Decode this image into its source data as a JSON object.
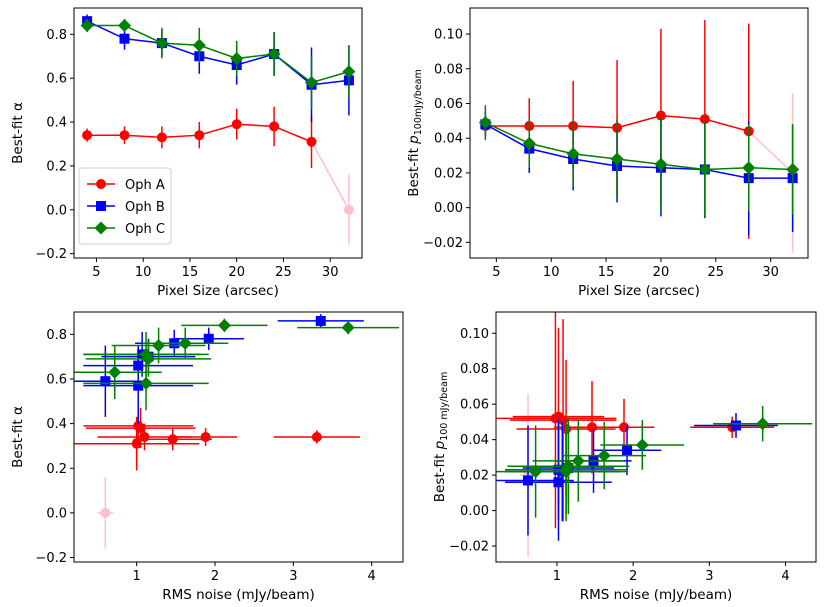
{
  "colors": {
    "Oph A": "#ff0000",
    "Oph B": "#0000ff",
    "Oph C": "#008000",
    "excluded": "#ffc0cb"
  },
  "legend": [
    "Oph A",
    "Oph B",
    "Oph C"
  ],
  "chart_data": [
    {
      "type": "scatter",
      "xlabel": "Pixel Size (arcsec)",
      "ylabel": "Best-fit α",
      "xlim": [
        2.6,
        33.4
      ],
      "ylim": [
        -0.22,
        0.92
      ],
      "xticks": [
        5,
        10,
        15,
        20,
        25,
        30
      ],
      "yticks": [
        -0.2,
        0.0,
        0.2,
        0.4,
        0.6,
        0.8
      ],
      "ytick_labels": [
        "−0.2",
        "0.0",
        "0.2",
        "0.4",
        "0.6",
        "0.8"
      ],
      "legend_position": "lower-left",
      "series": [
        {
          "name": "Oph A",
          "marker": "circle",
          "x": [
            4,
            8,
            12,
            16,
            20,
            24,
            28
          ],
          "y": [
            0.34,
            0.34,
            0.33,
            0.34,
            0.39,
            0.38,
            0.31
          ],
          "yerr": [
            0.03,
            0.04,
            0.05,
            0.06,
            0.07,
            0.09,
            0.12
          ]
        },
        {
          "name": "Oph B",
          "marker": "square",
          "x": [
            4,
            8,
            12,
            16,
            20,
            24,
            28,
            32
          ],
          "y": [
            0.86,
            0.78,
            0.76,
            0.7,
            0.66,
            0.71,
            0.57,
            0.59
          ],
          "yerr": [
            0.03,
            0.05,
            0.06,
            0.08,
            0.09,
            0.1,
            0.17,
            0.16
          ]
        },
        {
          "name": "Oph C",
          "marker": "diamond",
          "x": [
            4,
            8,
            12,
            16,
            20,
            24,
            28,
            32
          ],
          "y": [
            0.84,
            0.84,
            0.76,
            0.75,
            0.69,
            0.71,
            0.58,
            0.63
          ],
          "yerr": [
            0.03,
            0.03,
            0.07,
            0.08,
            0.08,
            0.1,
            0.12,
            0.12
          ]
        }
      ],
      "excluded": {
        "x": [
          28,
          32
        ],
        "y": [
          0.31,
          0.0
        ],
        "point_yerr": 0.16
      }
    },
    {
      "type": "scatter",
      "xlabel": "Pixel Size (arcsec)",
      "ylabel_main": "Best-fit ",
      "ylabel_symbol": "p",
      "ylabel_sub": "100mJy/beam",
      "xlim": [
        2.6,
        33.4
      ],
      "ylim": [
        -0.029,
        0.115
      ],
      "xticks": [
        5,
        10,
        15,
        20,
        25,
        30
      ],
      "yticks": [
        -0.02,
        0.0,
        0.02,
        0.04,
        0.06,
        0.08,
        0.1
      ],
      "ytick_labels": [
        "−0.02",
        "0.00",
        "0.02",
        "0.04",
        "0.06",
        "0.08",
        "0.10"
      ],
      "series": [
        {
          "name": "Oph A",
          "marker": "circle",
          "x": [
            4,
            8,
            12,
            16,
            20,
            24,
            28
          ],
          "y": [
            0.047,
            0.047,
            0.047,
            0.046,
            0.053,
            0.051,
            0.044
          ],
          "yerr": [
            0.006,
            0.016,
            0.026,
            0.039,
            0.05,
            0.057,
            0.062
          ]
        },
        {
          "name": "Oph B",
          "marker": "square",
          "x": [
            4,
            8,
            12,
            16,
            20,
            24,
            28,
            32
          ],
          "y": [
            0.048,
            0.034,
            0.028,
            0.024,
            0.023,
            0.022,
            0.017,
            0.017
          ],
          "yerr": [
            0.007,
            0.014,
            0.018,
            0.021,
            0.028,
            0.028,
            0.033,
            0.031
          ]
        },
        {
          "name": "Oph C",
          "marker": "diamond",
          "x": [
            4,
            8,
            12,
            16,
            20,
            24,
            28,
            32
          ],
          "y": [
            0.049,
            0.037,
            0.031,
            0.028,
            0.025,
            0.022,
            0.023,
            0.022
          ],
          "yerr": [
            0.01,
            0.014,
            0.019,
            0.023,
            0.027,
            0.028,
            0.025,
            0.026
          ]
        }
      ],
      "excluded": {
        "x": [
          28,
          32
        ],
        "y": [
          0.044,
          0.02
        ],
        "point_yerr": 0.046
      }
    },
    {
      "type": "scatter",
      "xlabel": "RMS noise (mJy/beam)",
      "ylabel": "Best-fit α",
      "xlim": [
        0.2,
        4.4
      ],
      "ylim": [
        -0.22,
        0.9
      ],
      "xticks": [
        1,
        2,
        3,
        4
      ],
      "yticks": [
        -0.2,
        0.0,
        0.2,
        0.4,
        0.6,
        0.8
      ],
      "ytick_labels": [
        "−0.2",
        "0.0",
        "0.2",
        "0.4",
        "0.6",
        "0.8"
      ],
      "series": [
        {
          "name": "Oph A",
          "marker": "circle",
          "x": [
            3.3,
            1.88,
            1.46,
            1.1,
            1.02,
            1.05,
            1.0
          ],
          "y": [
            0.34,
            0.34,
            0.33,
            0.34,
            0.39,
            0.38,
            0.31
          ],
          "xerr": [
            0.55,
            0.4,
            0.5,
            0.6,
            0.7,
            0.7,
            0.8
          ],
          "yerr": [
            0.03,
            0.04,
            0.05,
            0.06,
            0.07,
            0.09,
            0.12
          ]
        },
        {
          "name": "Oph B",
          "marker": "square",
          "x": [
            3.35,
            1.92,
            1.48,
            1.15,
            1.02,
            1.07,
            0.6,
            1.02
          ],
          "y": [
            0.86,
            0.78,
            0.76,
            0.7,
            0.66,
            0.71,
            0.59,
            0.57
          ],
          "xerr": [
            0.55,
            0.45,
            0.5,
            0.6,
            0.7,
            0.75,
            0.55,
            0.7
          ],
          "yerr": [
            0.03,
            0.05,
            0.06,
            0.08,
            0.09,
            0.1,
            0.16,
            0.17
          ]
        },
        {
          "name": "Oph C",
          "marker": "diamond",
          "x": [
            3.7,
            2.12,
            1.62,
            1.28,
            1.15,
            1.12,
            1.12,
            0.72
          ],
          "y": [
            0.83,
            0.84,
            0.76,
            0.75,
            0.69,
            0.71,
            0.58,
            0.63
          ],
          "xerr": [
            0.65,
            0.55,
            0.55,
            0.6,
            0.8,
            0.8,
            0.8,
            0.6
          ],
          "yerr": [
            0.03,
            0.03,
            0.07,
            0.08,
            0.08,
            0.1,
            0.12,
            0.12
          ]
        }
      ],
      "excluded": {
        "x": [
          0.6
        ],
        "y": [
          0.0
        ],
        "yerr": [
          0.16
        ]
      }
    },
    {
      "type": "scatter",
      "xlabel": "RMS noise (mJy/beam)",
      "ylabel_main": "Best-fit ",
      "ylabel_symbol": "p",
      "ylabel_sub": "100 mJy/beam",
      "xlim": [
        0.2,
        4.4
      ],
      "ylim": [
        -0.029,
        0.112
      ],
      "xticks": [
        1,
        2,
        3,
        4
      ],
      "yticks": [
        -0.02,
        0.0,
        0.02,
        0.04,
        0.06,
        0.08,
        0.1
      ],
      "ytick_labels": [
        "−0.02",
        "0.00",
        "0.02",
        "0.04",
        "0.06",
        "0.08",
        "0.10"
      ],
      "series": [
        {
          "name": "Oph A",
          "marker": "circle",
          "x": [
            3.3,
            1.88,
            1.46,
            1.12,
            1.02,
            1.08,
            0.98
          ],
          "y": [
            0.047,
            0.047,
            0.047,
            0.046,
            0.053,
            0.051,
            0.052
          ],
          "xerr": [
            0.55,
            0.4,
            0.5,
            0.65,
            0.6,
            0.7,
            0.8
          ],
          "yerr": [
            0.006,
            0.016,
            0.026,
            0.039,
            0.05,
            0.057,
            0.062
          ]
        },
        {
          "name": "Oph B",
          "marker": "square",
          "x": [
            3.35,
            1.92,
            1.48,
            1.15,
            1.02,
            1.07,
            0.62,
            1.02
          ],
          "y": [
            0.048,
            0.034,
            0.028,
            0.024,
            0.023,
            0.022,
            0.017,
            0.016
          ],
          "xerr": [
            0.55,
            0.45,
            0.5,
            0.6,
            0.7,
            0.75,
            0.6,
            0.7
          ],
          "yerr": [
            0.007,
            0.014,
            0.018,
            0.021,
            0.028,
            0.028,
            0.031,
            0.033
          ]
        },
        {
          "name": "Oph C",
          "marker": "diamond",
          "x": [
            3.7,
            2.12,
            1.62,
            1.28,
            1.15,
            1.12,
            1.12,
            0.72
          ],
          "y": [
            0.049,
            0.037,
            0.031,
            0.028,
            0.025,
            0.022,
            0.023,
            0.022
          ],
          "xerr": [
            0.65,
            0.55,
            0.55,
            0.6,
            0.8,
            0.8,
            0.8,
            0.6
          ],
          "yerr": [
            0.01,
            0.014,
            0.019,
            0.023,
            0.027,
            0.028,
            0.025,
            0.026
          ]
        }
      ],
      "excluded": {
        "x": [
          0.62
        ],
        "y": [
          0.02
        ],
        "yerr": [
          0.046
        ]
      }
    }
  ]
}
